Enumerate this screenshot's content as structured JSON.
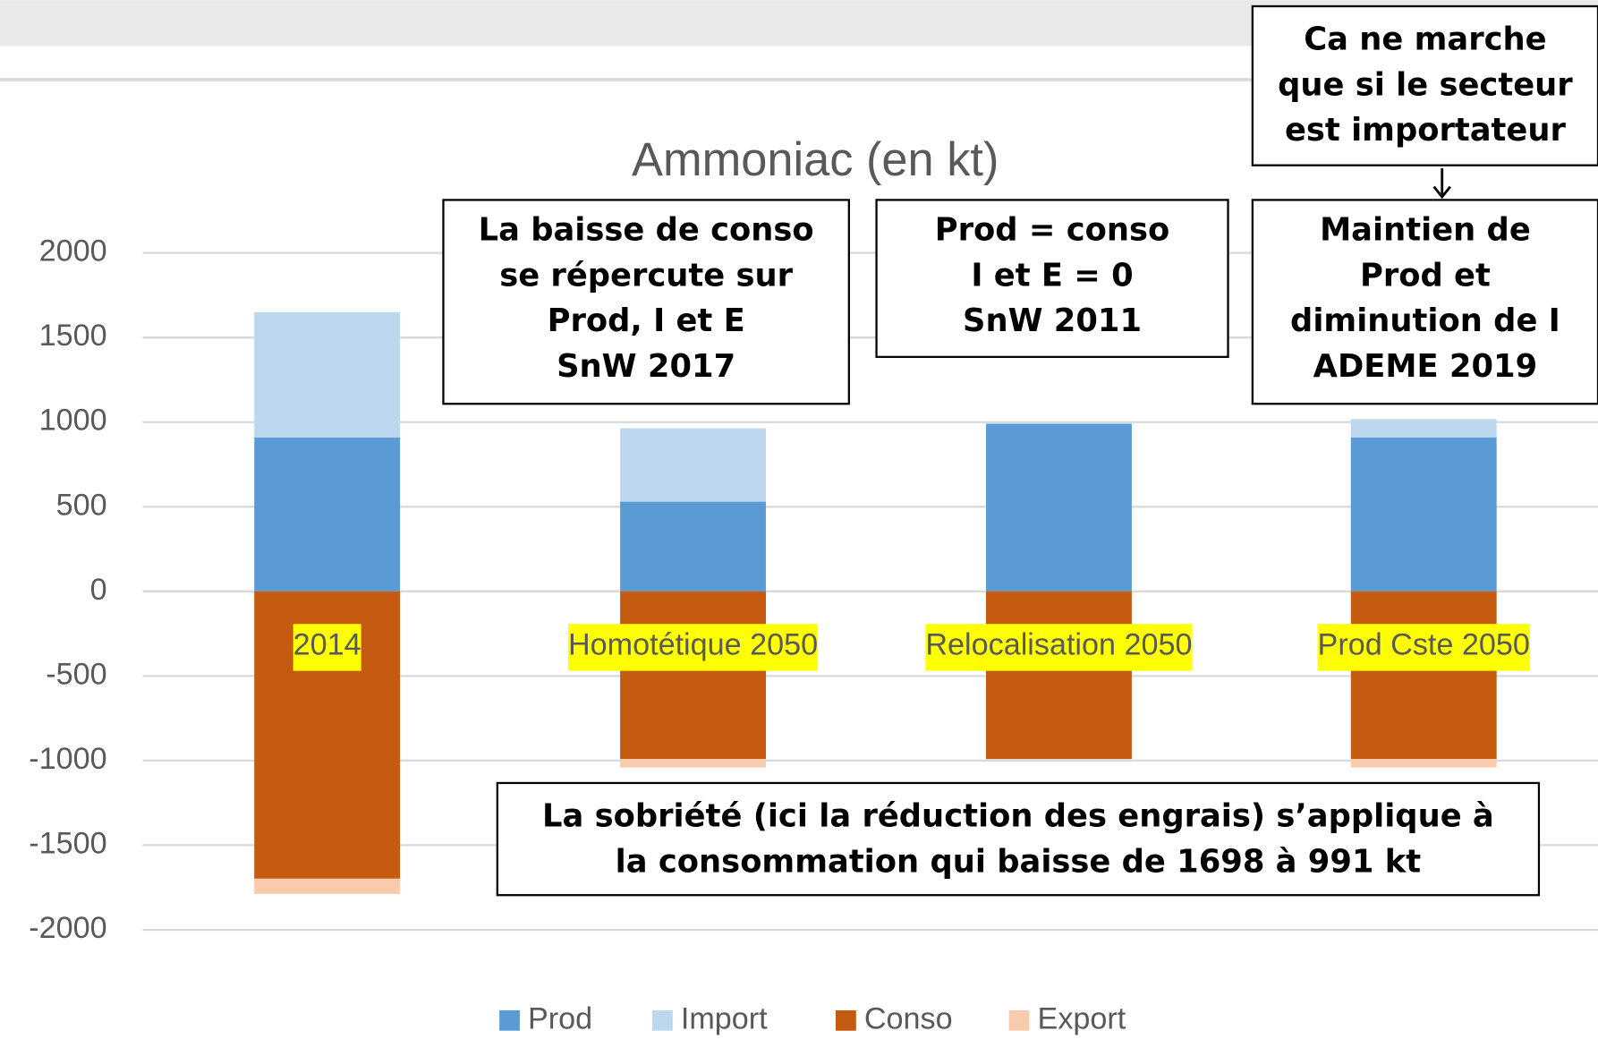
{
  "chart_data": {
    "type": "bar",
    "stacked": true,
    "title": "Ammoniac (en kt)",
    "categories": [
      "2014",
      "Homotétique 2050",
      "Relocalisation 2050",
      "Prod Cste 2050"
    ],
    "series": [
      {
        "name": "Prod",
        "color": "#5b9bd5",
        "values": [
          910,
          530,
          991,
          910
        ]
      },
      {
        "name": "Import",
        "color": "#bdd7ee",
        "values": [
          740,
          434,
          0,
          108
        ]
      },
      {
        "name": "Conso",
        "color": "#c55a11",
        "values": [
          -1698,
          -991,
          -991,
          -991
        ]
      },
      {
        "name": "Export",
        "color": "#f8cbad",
        "values": [
          -90,
          -50,
          0,
          -50
        ]
      }
    ],
    "ylim": [
      -2000,
      2000
    ],
    "yticks": [
      -2000,
      -1500,
      -1000,
      -500,
      0,
      500,
      1000,
      1500,
      2000
    ],
    "grid": true,
    "legend": "bottom",
    "annotations": [
      {
        "lines": [
          "La baisse de conso",
          "se répercute sur",
          "Prod, I et E",
          "SnW 2017"
        ]
      },
      {
        "lines": [
          "Prod =  conso",
          "I et E = 0",
          "SnW 2011"
        ]
      },
      {
        "lines": [
          "Ca ne marche",
          "que si le secteur",
          "est importateur"
        ]
      },
      {
        "lines": [
          "Maintien de",
          "Prod et",
          "diminution de I",
          "ADEME 2019"
        ]
      },
      {
        "lines": [
          "La sobriété (ici la réduction des engrais) s’applique à",
          "la consommation qui baisse de 1698 à 991 kt"
        ]
      }
    ]
  }
}
